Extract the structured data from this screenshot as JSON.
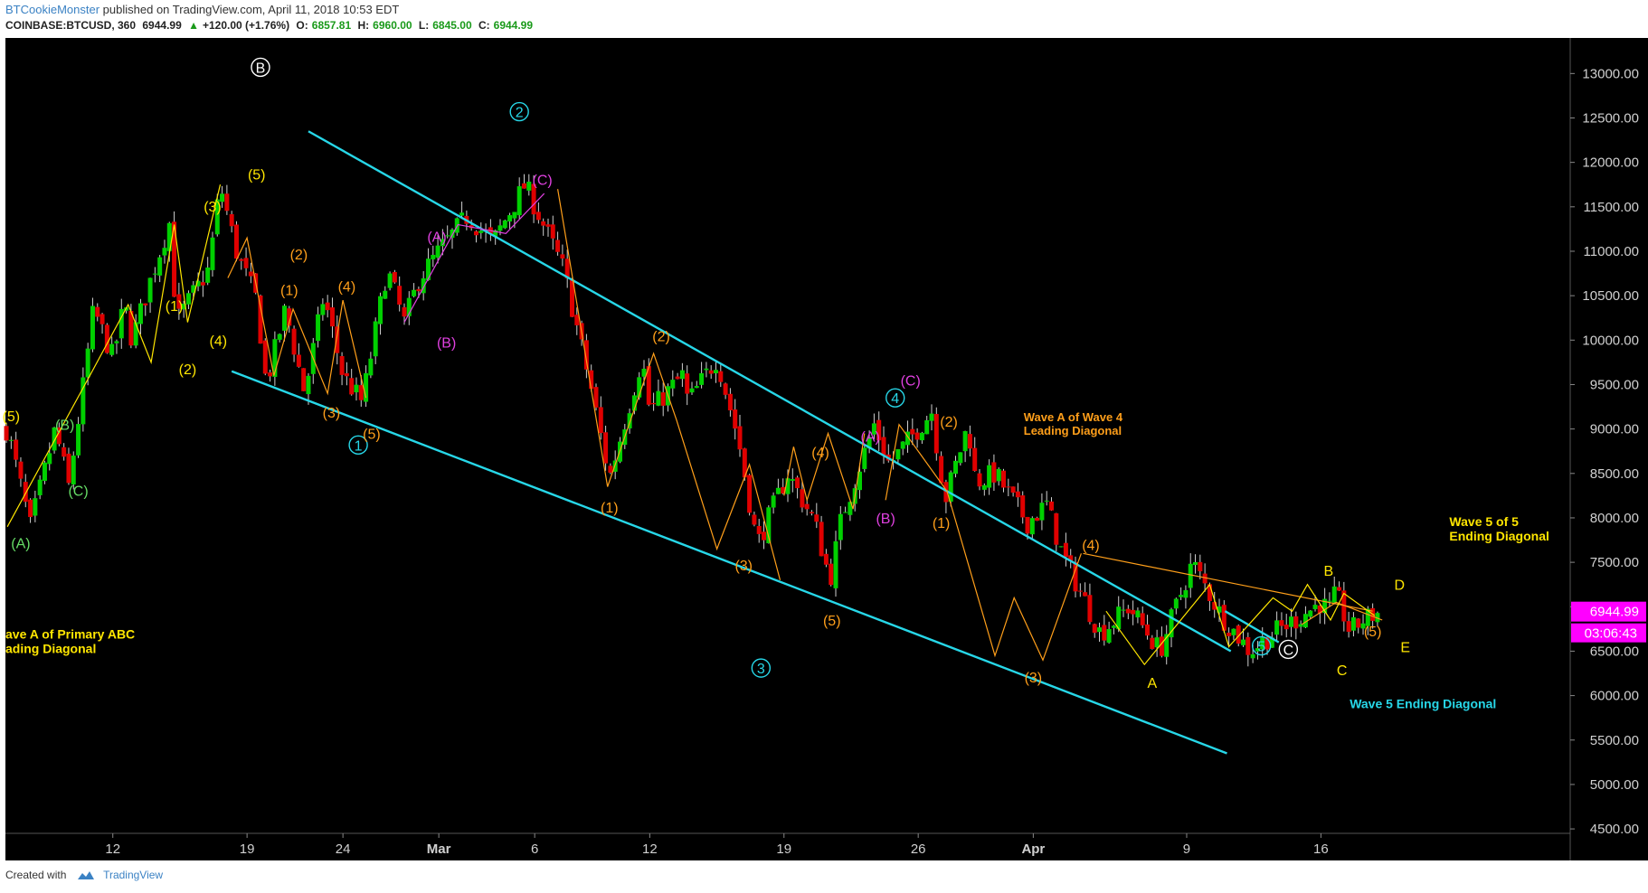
{
  "header": {
    "author": "BTCookieMonster",
    "published_text": "published on TradingView.com, April 11, 2018 10:53 EDT",
    "symbol": "COINBASE:BTCUSD, 360",
    "last": "6944.99",
    "change": "+120.00 (+1.76%)",
    "open_label": "O:",
    "open": "6857.81",
    "high_label": "H:",
    "high": "6960.00",
    "low_label": "L:",
    "low": "6845.00",
    "close_label": "C:",
    "close": "6944.99"
  },
  "footer": {
    "created_with": "Created with",
    "brand": "TradingView"
  },
  "colors": {
    "up": "#00d000",
    "down": "#e00000",
    "channel": "#27d7e8",
    "orange": "#ff9f1a",
    "yellow": "#ffe600",
    "magenta": "#e040e0",
    "green": "#66dd66",
    "white": "#ffffff",
    "price_badge": "#ff00ff"
  },
  "chart_data": {
    "type": "candlestick",
    "symbol": "COINBASE:BTCUSD",
    "interval": "360",
    "ylim": [
      4450,
      13400
    ],
    "xlim_days": [
      -5.6,
      76.0
    ],
    "x_ticks": [
      {
        "label": "12",
        "day": 0
      },
      {
        "label": "19",
        "day": 7
      },
      {
        "label": "24",
        "day": 12
      },
      {
        "label": "Mar",
        "day": 17
      },
      {
        "label": "6",
        "day": 22
      },
      {
        "label": "12",
        "day": 28
      },
      {
        "label": "19",
        "day": 35
      },
      {
        "label": "26",
        "day": 42
      },
      {
        "label": "Apr",
        "day": 48
      },
      {
        "label": "9",
        "day": 56
      },
      {
        "label": "16",
        "day": 63
      }
    ],
    "y_ticks": [
      4500,
      5000,
      5500,
      6000,
      6500,
      7000,
      7500,
      8000,
      8500,
      9000,
      9500,
      10000,
      10500,
      11000,
      11500,
      12000,
      12500,
      13000
    ],
    "current_price": "6944.99",
    "countdown": "03:06:43",
    "pivots": [
      [
        -5.5,
        9000
      ],
      [
        -4.3,
        7900
      ],
      [
        -3,
        9000
      ],
      [
        -2.3,
        8350
      ],
      [
        -1.5,
        9550
      ],
      [
        -1,
        10350
      ],
      [
        0,
        9800
      ],
      [
        0.6,
        10400
      ],
      [
        1,
        10000
      ],
      [
        2,
        10700
      ],
      [
        3,
        11350
      ],
      [
        3.3,
        10200
      ],
      [
        5,
        10800
      ],
      [
        5.6,
        11750
      ],
      [
        6.5,
        10950
      ],
      [
        7.5,
        10450
      ],
      [
        8,
        9500
      ],
      [
        9,
        10350
      ],
      [
        10,
        9400
      ],
      [
        11,
        10500
      ],
      [
        12,
        9600
      ],
      [
        13,
        9300
      ],
      [
        14.3,
        10800
      ],
      [
        15.2,
        10200
      ],
      [
        16,
        10700
      ],
      [
        17,
        11000
      ],
      [
        18.5,
        11400
      ],
      [
        19.8,
        11100
      ],
      [
        21.5,
        11750
      ],
      [
        23.5,
        10800
      ],
      [
        25,
        9400
      ],
      [
        25.9,
        8450
      ],
      [
        27.6,
        9800
      ],
      [
        28,
        9200
      ],
      [
        29.7,
        9600
      ],
      [
        30,
        9300
      ],
      [
        31.5,
        9800
      ],
      [
        32.6,
        8900
      ],
      [
        33.6,
        7700
      ],
      [
        35.2,
        8500
      ],
      [
        36.6,
        7950
      ],
      [
        37.4,
        7300
      ],
      [
        38,
        8000
      ],
      [
        39.7,
        9050
      ],
      [
        40.5,
        8600
      ],
      [
        42.7,
        9200
      ],
      [
        43.4,
        8200
      ],
      [
        44.6,
        9050
      ],
      [
        45,
        8400
      ],
      [
        46,
        8500
      ],
      [
        47.7,
        7950
      ],
      [
        48.7,
        8150
      ],
      [
        49.5,
        7600
      ],
      [
        51.5,
        6700
      ],
      [
        53,
        7000
      ],
      [
        54.6,
        6500
      ],
      [
        56.3,
        7500
      ],
      [
        57.8,
        6900
      ],
      [
        59.3,
        6500
      ],
      [
        60.5,
        6700
      ],
      [
        62,
        6900
      ],
      [
        63,
        7050
      ],
      [
        63.4,
        6950
      ],
      [
        63.8,
        7150
      ],
      [
        64.5,
        6720
      ],
      [
        65.2,
        6850
      ],
      [
        66.1,
        6944
      ]
    ],
    "channel_lines": [
      {
        "from": [
          10.2,
          12350
        ],
        "to": [
          58.3,
          6500
        ],
        "color": "#27d7e8"
      },
      {
        "from": [
          6.2,
          9650
        ],
        "to": [
          58.1,
          5350
        ],
        "color": "#27d7e8"
      },
      {
        "from": [
          58,
          6950
        ],
        "to": [
          60.8,
          6600
        ],
        "color": "#27d7e8"
      }
    ],
    "wave_paths": [
      {
        "color": "#ff9f1a",
        "points": [
          [
            6,
            10700
          ],
          [
            7,
            11150
          ],
          [
            8.4,
            9600
          ],
          [
            9.4,
            10350
          ],
          [
            11.2,
            9400
          ],
          [
            12,
            10450
          ],
          [
            13.2,
            9350
          ]
        ]
      },
      {
        "color": "#e040e0",
        "points": [
          [
            15.2,
            10200
          ],
          [
            18,
            11300
          ],
          [
            20.5,
            11200
          ],
          [
            22.5,
            11650
          ]
        ]
      },
      {
        "color": "#ff9f1a",
        "points": [
          [
            23.2,
            11700
          ],
          [
            25.8,
            8350
          ],
          [
            28.2,
            9850
          ],
          [
            29.4,
            9100
          ],
          [
            31.5,
            7650
          ],
          [
            33.2,
            8600
          ],
          [
            34.8,
            7300
          ]
        ]
      },
      {
        "color": "#ff9f1a",
        "points": [
          [
            35,
            8250
          ],
          [
            35.5,
            8800
          ],
          [
            36.2,
            8200
          ],
          [
            37.3,
            8950
          ],
          [
            38.6,
            8100
          ],
          [
            39.2,
            8950
          ]
        ]
      },
      {
        "color": "#ff9f1a",
        "points": [
          [
            40.3,
            8200
          ],
          [
            41,
            9050
          ],
          [
            43.5,
            8300
          ],
          [
            46,
            6450
          ],
          [
            47,
            7100
          ],
          [
            48.5,
            6400
          ],
          [
            50.5,
            7600
          ]
        ]
      },
      {
        "color": "#ff9f1a",
        "points": [
          [
            50.6,
            7600
          ],
          [
            65.7,
            6950
          ]
        ]
      },
      {
        "color": "#ff9f1a",
        "points": [
          [
            62,
            6800
          ],
          [
            63.8,
            7050
          ],
          [
            66.2,
            6850
          ]
        ]
      },
      {
        "color": "#ffe600",
        "points": [
          [
            -5.5,
            7900
          ],
          [
            -1.2,
            9600
          ],
          [
            0.8,
            10400
          ],
          [
            2,
            9750
          ],
          [
            3.2,
            11300
          ],
          [
            3.9,
            10200
          ],
          [
            5.6,
            11750
          ]
        ]
      },
      {
        "color": "#ffe600",
        "points": [
          [
            51.8,
            6950
          ],
          [
            53.8,
            6350
          ],
          [
            57.2,
            7250
          ],
          [
            58.2,
            6550
          ],
          [
            60.5,
            7100
          ],
          [
            61.5,
            6950
          ],
          [
            62.3,
            7250
          ],
          [
            63.5,
            6850
          ],
          [
            64.2,
            7150
          ],
          [
            65.8,
            6900
          ]
        ]
      }
    ],
    "wave_labels": [
      {
        "text": "B",
        "day": 7.7,
        "price": 13070,
        "color": "#ffffff",
        "circled": true
      },
      {
        "text": "2",
        "day": 21.2,
        "price": 12570,
        "color": "#27d7e8",
        "circled": true
      },
      {
        "text": "1",
        "day": 12.8,
        "price": 8820,
        "color": "#27d7e8",
        "circled": true
      },
      {
        "text": "3",
        "day": 33.8,
        "price": 6310,
        "color": "#27d7e8",
        "circled": true
      },
      {
        "text": "4",
        "day": 40.8,
        "price": 9350,
        "color": "#27d7e8",
        "circled": true
      },
      {
        "text": "5",
        "day": 59.9,
        "price": 6560,
        "color": "#27d7e8",
        "circled": true
      },
      {
        "text": "C",
        "day": 61.3,
        "price": 6520,
        "color": "#ffffff",
        "circled": true
      },
      {
        "text": "(5)",
        "day": 7.5,
        "price": 11870,
        "color": "#ffe600"
      },
      {
        "text": "(3)",
        "day": 5.2,
        "price": 11510,
        "color": "#ffe600"
      },
      {
        "text": "(1)",
        "day": 3.2,
        "price": 10390,
        "color": "#ffe600"
      },
      {
        "text": "(2)",
        "day": 3.9,
        "price": 9680,
        "color": "#ffe600"
      },
      {
        "text": "(4)",
        "day": 5.5,
        "price": 10000,
        "color": "#ffe600"
      },
      {
        "text": "(5)",
        "day": -5.3,
        "price": 9150,
        "color": "#ffe600"
      },
      {
        "text": "(B)",
        "day": -2.5,
        "price": 9050,
        "color": "#66dd66"
      },
      {
        "text": "(C)",
        "day": -1.8,
        "price": 8310,
        "color": "#66dd66"
      },
      {
        "text": "(A)",
        "day": -4.8,
        "price": 7720,
        "color": "#66dd66"
      },
      {
        "text": "(2)",
        "day": 9.7,
        "price": 10970,
        "color": "#ff9f1a"
      },
      {
        "text": "(1)",
        "day": 9.2,
        "price": 10570,
        "color": "#ff9f1a"
      },
      {
        "text": "(4)",
        "day": 12.2,
        "price": 10610,
        "color": "#ff9f1a"
      },
      {
        "text": "(3)",
        "day": 11.4,
        "price": 9190,
        "color": "#ff9f1a"
      },
      {
        "text": "(5)",
        "day": 13.5,
        "price": 8950,
        "color": "#ff9f1a"
      },
      {
        "text": "(A)",
        "day": 16.9,
        "price": 11170,
        "color": "#e040e0"
      },
      {
        "text": "(B)",
        "day": 17.4,
        "price": 9980,
        "color": "#e040e0"
      },
      {
        "text": "(C)",
        "day": 22.4,
        "price": 11810,
        "color": "#e040e0"
      },
      {
        "text": "(2)",
        "day": 28.6,
        "price": 10050,
        "color": "#ff9f1a"
      },
      {
        "text": "(1)",
        "day": 25.9,
        "price": 8120,
        "color": "#ff9f1a"
      },
      {
        "text": "(3)",
        "day": 32.9,
        "price": 7470,
        "color": "#ff9f1a"
      },
      {
        "text": "(4)",
        "day": 36.9,
        "price": 8740,
        "color": "#ff9f1a"
      },
      {
        "text": "(5)",
        "day": 37.5,
        "price": 6850,
        "color": "#ff9f1a"
      },
      {
        "text": "(A)",
        "day": 39.5,
        "price": 8920,
        "color": "#e040e0"
      },
      {
        "text": "(B)",
        "day": 40.3,
        "price": 8000,
        "color": "#e040e0"
      },
      {
        "text": "(C)",
        "day": 41.6,
        "price": 9550,
        "color": "#e040e0"
      },
      {
        "text": "(2)",
        "day": 43.6,
        "price": 9090,
        "color": "#ff9f1a"
      },
      {
        "text": "(1)",
        "day": 43.2,
        "price": 7950,
        "color": "#ff9f1a"
      },
      {
        "text": "(3)",
        "day": 48.0,
        "price": 6210,
        "color": "#ff9f1a"
      },
      {
        "text": "(4)",
        "day": 51.0,
        "price": 7700,
        "color": "#ff9f1a"
      },
      {
        "text": "(5)",
        "day": 65.7,
        "price": 6730,
        "color": "#ff9f1a"
      },
      {
        "text": "A",
        "day": 54.2,
        "price": 6150,
        "color": "#ffe600"
      },
      {
        "text": "B",
        "day": 63.4,
        "price": 7410,
        "color": "#ffe600"
      },
      {
        "text": "C",
        "day": 64.1,
        "price": 6290,
        "color": "#ffe600"
      },
      {
        "text": "D",
        "day": 67.1,
        "price": 7250,
        "color": "#ffe600"
      },
      {
        "text": "E",
        "day": 67.4,
        "price": 6550,
        "color": "#ffe600"
      }
    ],
    "annotations": [
      {
        "lines": [
          "Wave A of Wave 4",
          "Leading Diagonal"
        ],
        "day": 47.5,
        "price": 9090,
        "color": "#ff9f1a",
        "size": 13
      },
      {
        "lines": [
          "Wave 5 of 5",
          "Ending Diagonal"
        ],
        "day": 69.7,
        "price": 7910,
        "color": "#ffe600",
        "size": 14
      },
      {
        "lines": [
          "Wave 5 Ending Diagonal"
        ],
        "day": 64.5,
        "price": 5860,
        "color": "#27d7e8",
        "size": 14
      },
      {
        "lines": [
          "ave A of Primary ABC",
          "ading Diagonal"
        ],
        "day": -5.6,
        "price": 6640,
        "color": "#ffe600",
        "size": 14
      }
    ]
  }
}
